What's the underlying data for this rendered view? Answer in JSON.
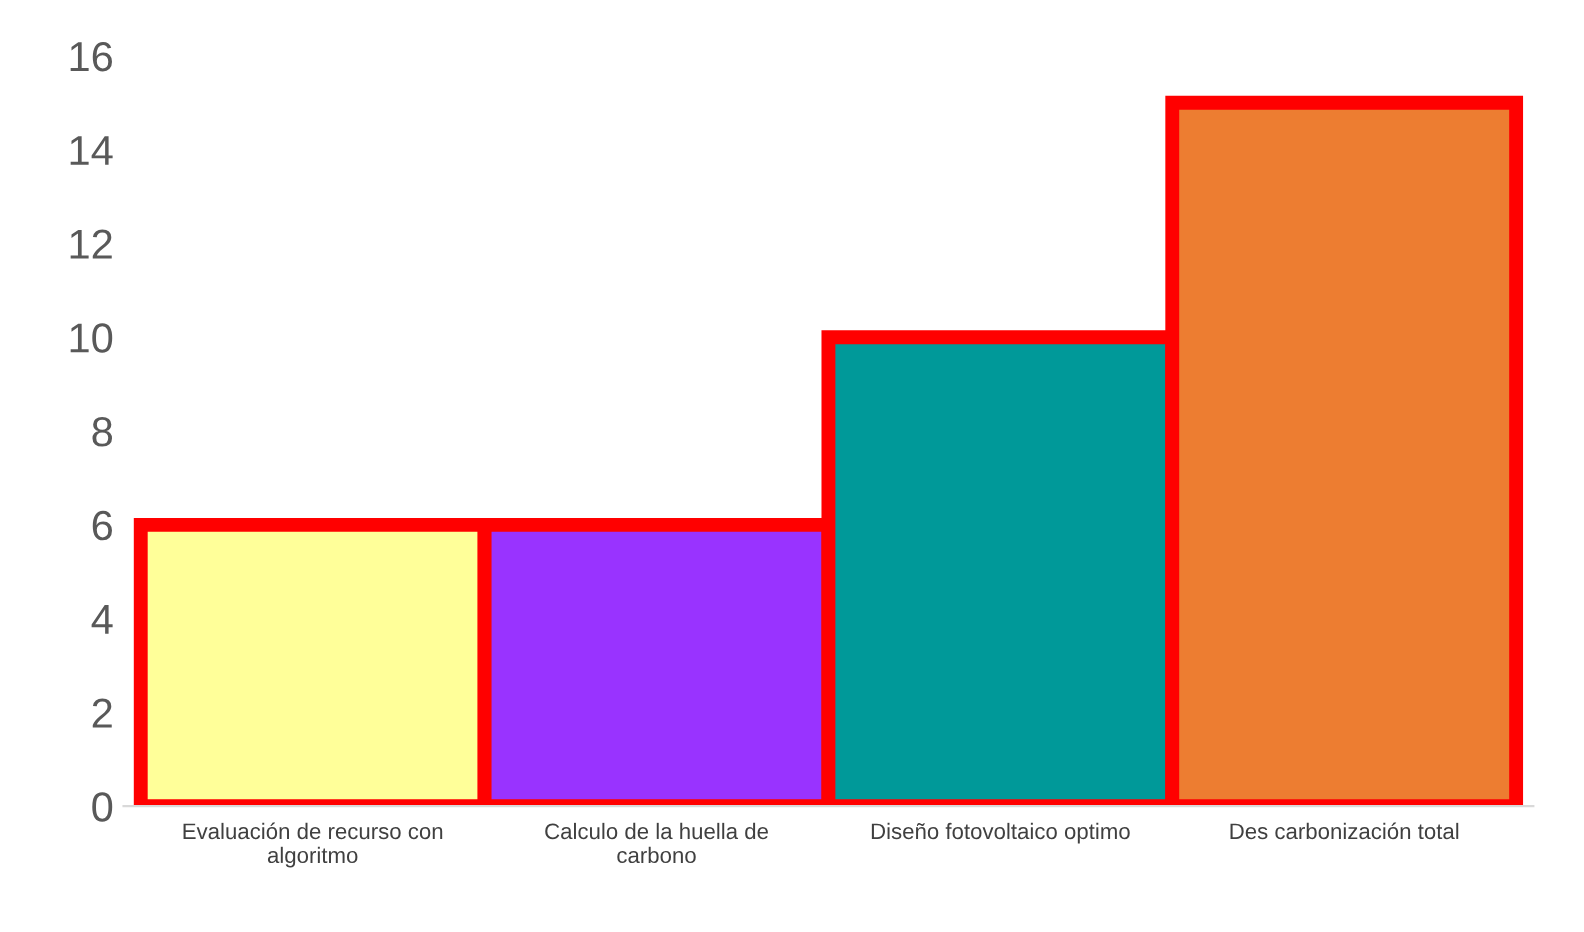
{
  "chart_data": {
    "type": "bar",
    "categories": [
      "Evaluación de recurso con algoritmo",
      "Calculo de la huella de carbono",
      "Diseño fotovoltaico optimo",
      "Des carbonización total"
    ],
    "values": [
      6,
      6,
      10,
      15
    ],
    "colors": [
      "#ffff99",
      "#9933ff",
      "#009999",
      "#ed7d31"
    ],
    "ylim": [
      0,
      16
    ],
    "yticks": [
      0,
      2,
      4,
      6,
      8,
      10,
      12,
      14,
      16
    ],
    "grid": false,
    "legend": false
  }
}
